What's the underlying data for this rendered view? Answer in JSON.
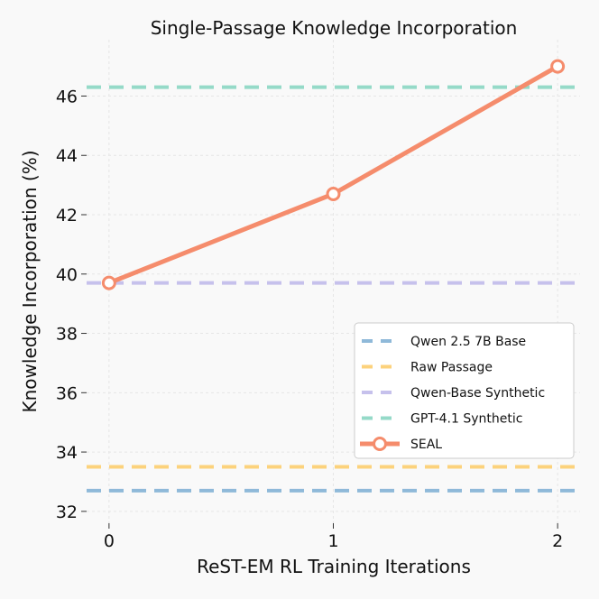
{
  "chart_data": {
    "type": "line",
    "title": "Single-Passage Knowledge Incorporation",
    "xlabel": "ReST-EM RL Training Iterations",
    "ylabel": "Knowledge Incorporation (%)",
    "xlim": [
      -0.1,
      2.1
    ],
    "ylim": [
      31.6,
      47.9
    ],
    "xticks": [
      "0",
      "1",
      "2"
    ],
    "yticks": [
      "32",
      "34",
      "36",
      "38",
      "40",
      "42",
      "44",
      "46"
    ],
    "grid": true,
    "legend_placement": "lower-right",
    "baselines": [
      {
        "name": "Qwen 2.5 7B Base",
        "value": 32.7,
        "color": "#8fb9d9"
      },
      {
        "name": "Raw Passage",
        "value": 33.5,
        "color": "#fcd27c"
      },
      {
        "name": "Qwen-Base Synthetic",
        "value": 39.7,
        "color": "#c6c1ec"
      },
      {
        "name": "GPT-4.1 Synthetic",
        "value": 46.3,
        "color": "#95dac8"
      }
    ],
    "series": [
      {
        "name": "SEAL",
        "x": [
          0,
          1,
          2
        ],
        "values": [
          39.7,
          42.7,
          47.0
        ],
        "color": "#f58c6c"
      }
    ]
  }
}
